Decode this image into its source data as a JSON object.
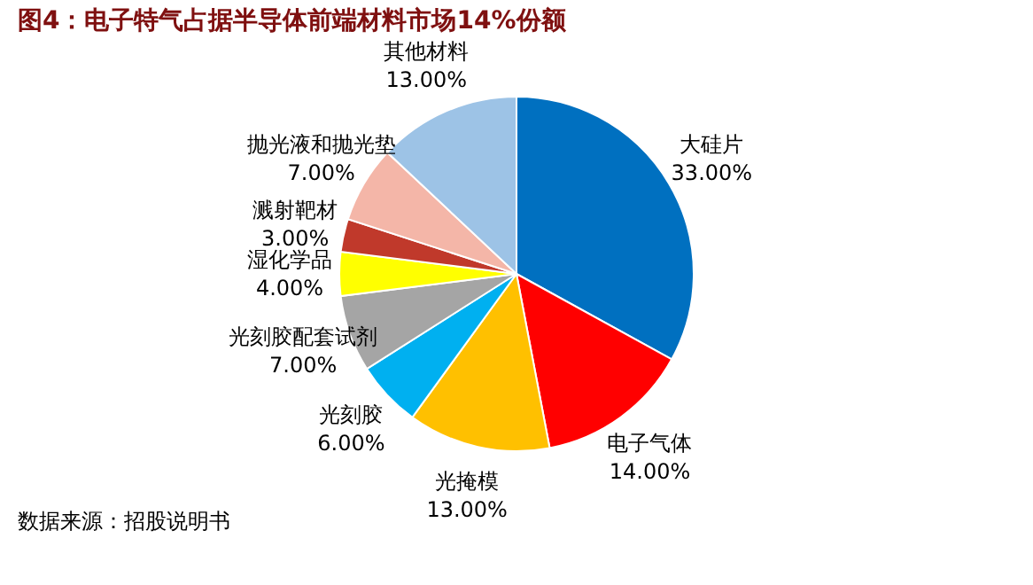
{
  "chart_data": {
    "type": "pie",
    "title": "图4：电子特气占据半导体前端材料市场14%份额",
    "categories": [
      "大硅片",
      "电子气体",
      "光掩模",
      "光刻胶",
      "光刻胶配套试剂",
      "湿化学品",
      "溅射靶材",
      "抛光液和抛光垫",
      "其他材料"
    ],
    "values": [
      33,
      14,
      13,
      6,
      7,
      4,
      3,
      7,
      13
    ],
    "value_labels": [
      "33.00%",
      "14.00%",
      "13.00%",
      "6.00%",
      "7.00%",
      "4.00%",
      "3.00%",
      "7.00%",
      "13.00%"
    ],
    "colors": [
      "#0070c0",
      "#ff0000",
      "#ffc000",
      "#00b0f0",
      "#a5a5a5",
      "#ffff00",
      "#c0392b",
      "#f4b6a8",
      "#9dc3e6"
    ],
    "annotations": [
      "数据来源：招股说明书"
    ]
  }
}
